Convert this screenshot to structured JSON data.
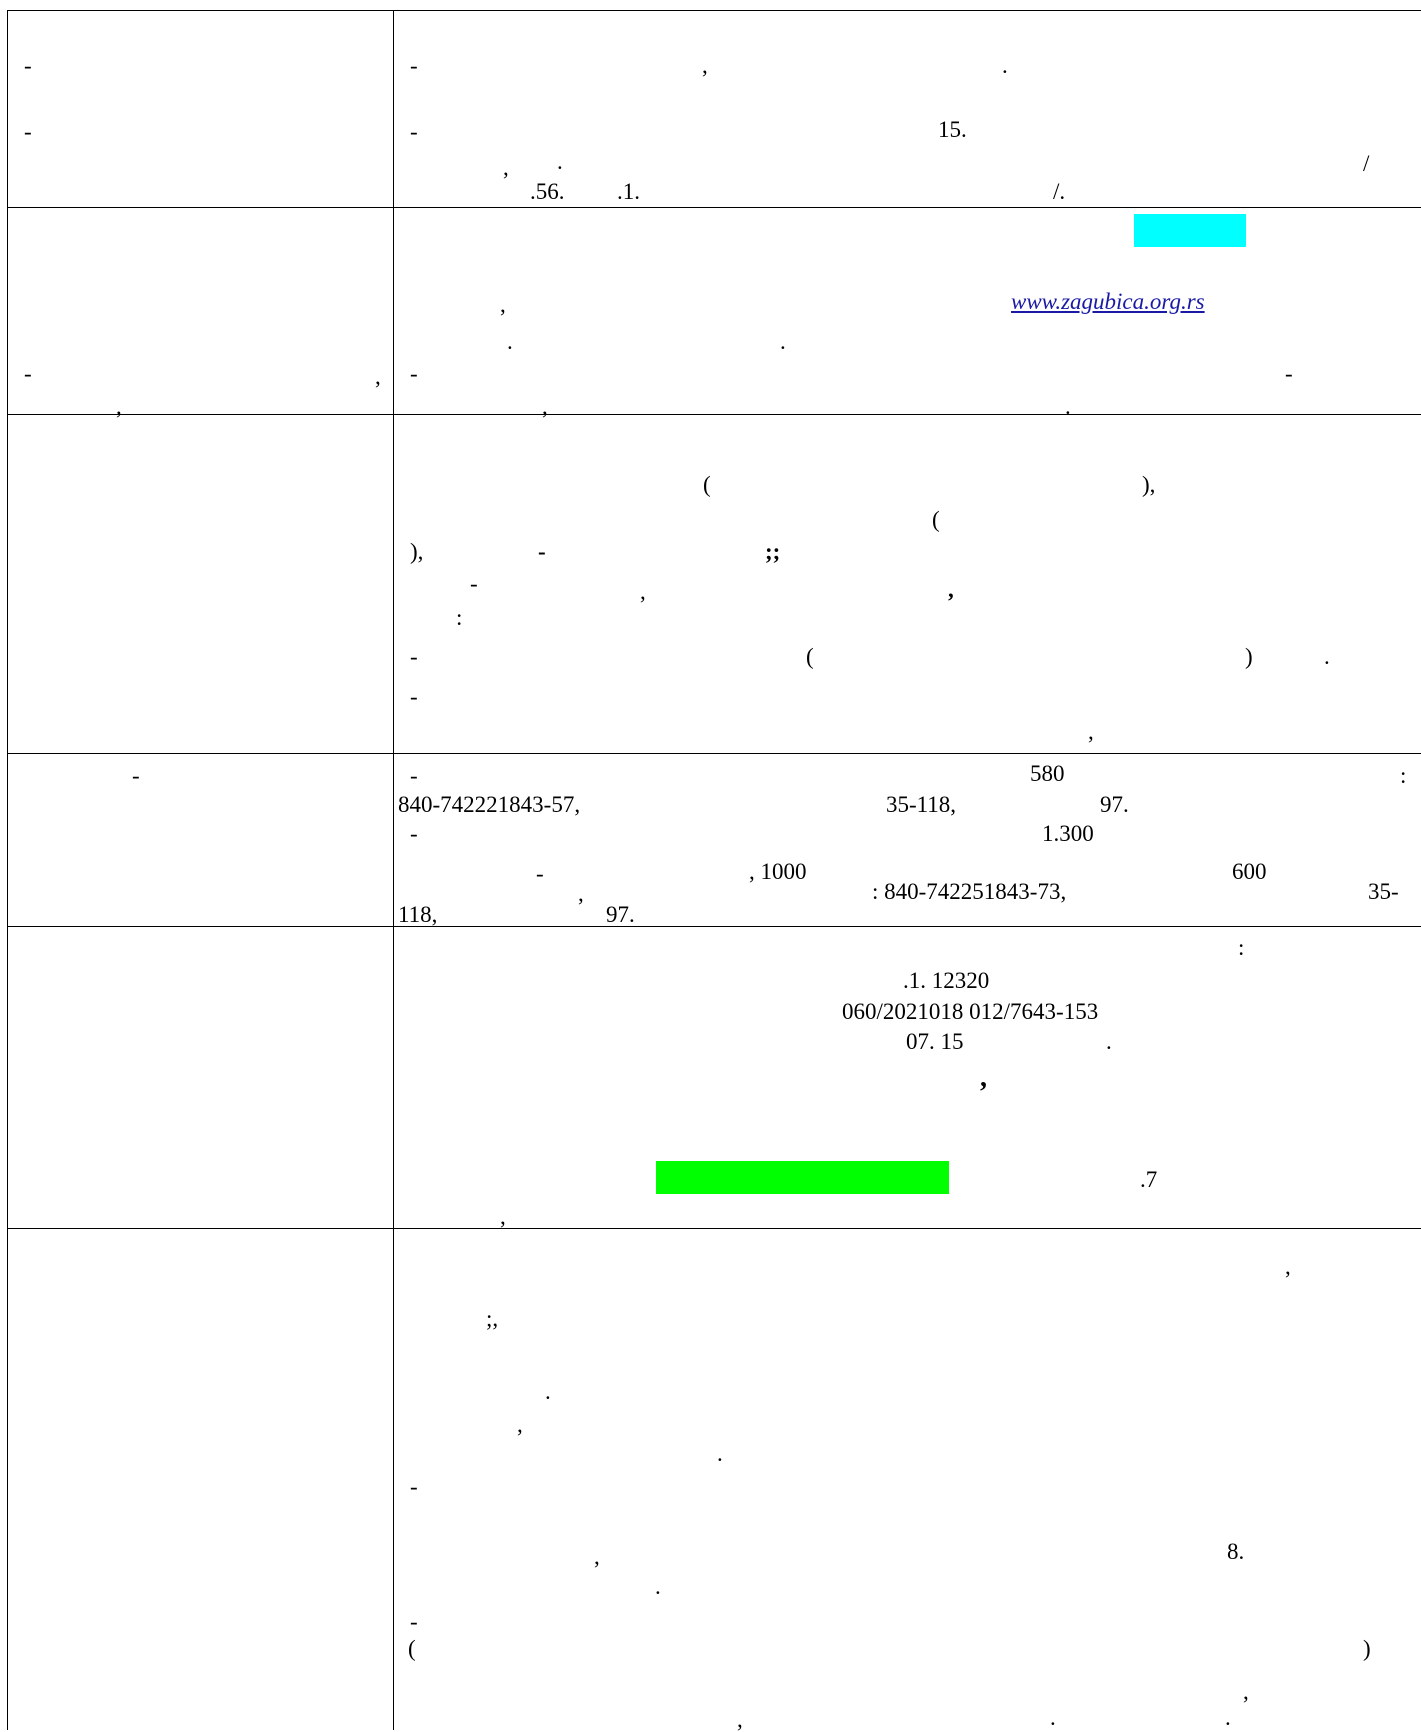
{
  "colors": {
    "rule": "#000000",
    "link": "#1a1aa6",
    "highlight_cyan": "#00ffff",
    "highlight_green": "#00ff00"
  },
  "rows": [
    {
      "name": "row-1",
      "left": [
        "-",
        "-"
      ],
      "right": [
        "-",
        ",",
        ".",
        "-",
        "15.",
        ",",
        ".",
        "/",
        ".56.",
        ".1.",
        "/."
      ]
    },
    {
      "name": "row-2",
      "left": [
        "-",
        ",",
        ","
      ],
      "right": [
        ",",
        "www.zagubica.org.rs",
        ".",
        ".",
        "-",
        "-",
        ",",
        "."
      ]
    },
    {
      "name": "row-3",
      "right": [
        "(",
        "),",
        "(",
        "),",
        "-",
        ";;",
        "-",
        ",",
        ",",
        ":",
        "-",
        "(",
        ")",
        ".",
        "-",
        ","
      ]
    },
    {
      "name": "row-4",
      "left": [
        "-"
      ],
      "right": [
        "-",
        "580",
        ":",
        "840-742221843-57,",
        "35-118,",
        "97.",
        "-",
        "1.300",
        "-",
        ", 1000",
        "600",
        ",",
        ": 840-742251843-73,",
        "35-",
        "118,",
        "97."
      ]
    },
    {
      "name": "row-5",
      "right": [
        ":",
        ".1. 12320",
        "060/2021018   012/7643-153",
        "07.     15",
        ".",
        ",",
        ".7",
        ","
      ]
    },
    {
      "name": "row-6",
      "right": [
        ",",
        ";,",
        ".",
        ",",
        ".",
        "-",
        ",",
        "8.",
        ".",
        "-",
        "(",
        ")",
        ",",
        ",",
        ".",
        "."
      ]
    }
  ]
}
